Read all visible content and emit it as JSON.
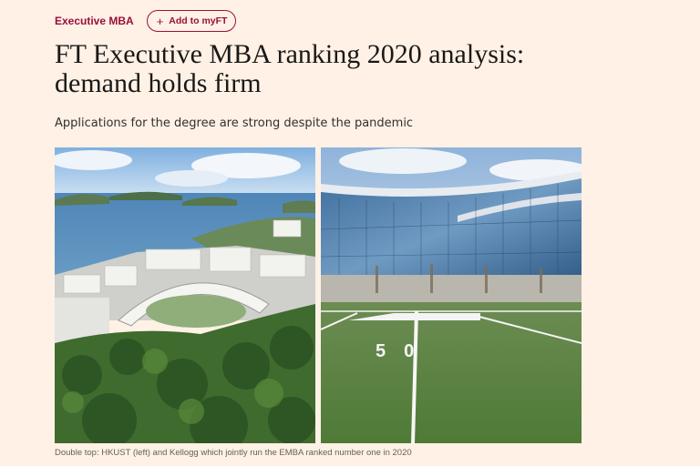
{
  "topic": {
    "label": "Executive MBA"
  },
  "myft": {
    "plus": "+",
    "label": "Add to myFT"
  },
  "headline": {
    "line1": "FT Executive MBA ranking 2020 analysis:",
    "line2": "demand holds firm"
  },
  "standfirst": "Applications for the degree are strong despite the pandemic",
  "figure": {
    "caption": "Double top: HKUST (left) and Kellogg which jointly run the EMBA ranked number one in 2020",
    "right_field_numbers": "50"
  },
  "colors": {
    "accent": "#990f3d",
    "background": "#fff1e5",
    "text": "#33302e"
  }
}
